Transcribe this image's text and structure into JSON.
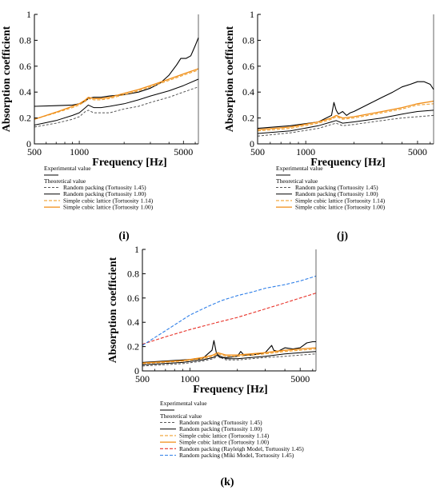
{
  "chart_data": [
    {
      "panel": "(i)",
      "type": "line",
      "xlabel": "Frequency [Hz]",
      "ylabel": "Absorption coefficient",
      "xscale": "log",
      "xlim": [
        500,
        6300
      ],
      "ylim": [
        0,
        1
      ],
      "xticks": [
        {
          "v": 500,
          "t": "500"
        },
        {
          "v": 1000,
          "t": "1000"
        },
        {
          "v": 5000,
          "t": "5000"
        }
      ],
      "yticks": [
        {
          "v": 0,
          "t": "0"
        },
        {
          "v": 0.2,
          "t": "0.2"
        },
        {
          "v": 0.4,
          "t": "0.4"
        },
        {
          "v": 0.6,
          "t": "0.6"
        },
        {
          "v": 0.8,
          "t": "0.8"
        },
        {
          "v": 1,
          "t": "1"
        }
      ],
      "legend": {
        "experimental_header": "Experimental value",
        "theoretical_header": "Theoretical value",
        "entries": [
          "Random packing (Tortuosity 1.45)",
          "Random packing (Tortuosity 1.00)",
          "Simple cubic lattice (Tortuosity 1.14)",
          "Simple cubic lattice (Tortuosity 1.00)"
        ]
      },
      "series": [
        {
          "color": "#000000",
          "dash": "solid",
          "width": 1.1,
          "x": [
            500,
            700,
            900,
            1000,
            1100,
            1150,
            1250,
            1400,
            1600,
            2000,
            2500,
            3000,
            3500,
            4000,
            4500,
            4800,
            5200,
            5600,
            6000,
            6300
          ],
          "y": [
            0.29,
            0.295,
            0.3,
            0.31,
            0.33,
            0.35,
            0.36,
            0.36,
            0.37,
            0.38,
            0.4,
            0.43,
            0.47,
            0.53,
            0.61,
            0.66,
            0.66,
            0.68,
            0.76,
            0.82
          ]
        },
        {
          "color": "#555555",
          "dash": "3,2",
          "width": 1,
          "x": [
            500,
            700,
            900,
            1000,
            1100,
            1150,
            1250,
            1400,
            1600,
            2000,
            2500,
            3000,
            4000,
            5000,
            6300
          ],
          "y": [
            0.13,
            0.16,
            0.19,
            0.21,
            0.25,
            0.26,
            0.24,
            0.24,
            0.24,
            0.27,
            0.29,
            0.32,
            0.36,
            0.4,
            0.44
          ]
        },
        {
          "color": "#000000",
          "dash": "solid",
          "width": 1,
          "x": [
            500,
            700,
            900,
            1000,
            1100,
            1150,
            1250,
            1400,
            1600,
            2000,
            2500,
            3000,
            4000,
            5000,
            6300
          ],
          "y": [
            0.145,
            0.18,
            0.22,
            0.24,
            0.28,
            0.3,
            0.28,
            0.28,
            0.29,
            0.31,
            0.34,
            0.37,
            0.41,
            0.45,
            0.5
          ]
        },
        {
          "color": "#f0a030",
          "dash": "4,2",
          "width": 1.1,
          "x": [
            500,
            700,
            900,
            1000,
            1100,
            1150,
            1250,
            1400,
            1600,
            2000,
            2500,
            3000,
            4000,
            5000,
            6300
          ],
          "y": [
            0.19,
            0.24,
            0.28,
            0.3,
            0.33,
            0.35,
            0.34,
            0.34,
            0.35,
            0.38,
            0.41,
            0.44,
            0.49,
            0.53,
            0.57
          ]
        },
        {
          "color": "#f08c14",
          "dash": "solid",
          "width": 1.3,
          "x": [
            500,
            700,
            900,
            1000,
            1100,
            1150,
            1250,
            1400,
            1600,
            2000,
            2500,
            3000,
            4000,
            5000,
            6300
          ],
          "y": [
            0.19,
            0.245,
            0.29,
            0.31,
            0.34,
            0.36,
            0.35,
            0.35,
            0.36,
            0.39,
            0.42,
            0.45,
            0.5,
            0.54,
            0.58
          ]
        }
      ]
    },
    {
      "panel": "(j)",
      "type": "line",
      "xlabel": "Frequency [Hz]",
      "ylabel": "Absorption coefficient",
      "xscale": "log",
      "xlim": [
        500,
        6300
      ],
      "ylim": [
        0,
        1
      ],
      "xticks": [
        {
          "v": 500,
          "t": "500"
        },
        {
          "v": 1000,
          "t": "1000"
        },
        {
          "v": 5000,
          "t": "5000"
        }
      ],
      "yticks": [
        {
          "v": 0,
          "t": "0"
        },
        {
          "v": 0.2,
          "t": "0.2"
        },
        {
          "v": 0.4,
          "t": "0.4"
        },
        {
          "v": 0.6,
          "t": "0.6"
        },
        {
          "v": 0.8,
          "t": "0.8"
        },
        {
          "v": 1,
          "t": "1"
        }
      ],
      "legend": {
        "experimental_header": "Experimental value",
        "theoretical_header": "Theoretical value",
        "entries": [
          "Random packing (Tortuosity 1.45)",
          "Random packing (Tortuosity 1.00)",
          "Simple cubic lattice (Tortuosity 1.14)",
          "Simple cubic lattice (Tortuosity 1.00)"
        ]
      },
      "series": [
        {
          "color": "#000000",
          "dash": "solid",
          "width": 1.1,
          "x": [
            500,
            800,
            1200,
            1450,
            1500,
            1550,
            1600,
            1700,
            1800,
            1900,
            2000,
            2500,
            3000,
            3500,
            4000,
            4500,
            5000,
            5500,
            6000,
            6300
          ],
          "y": [
            0.12,
            0.14,
            0.17,
            0.22,
            0.32,
            0.26,
            0.23,
            0.25,
            0.22,
            0.24,
            0.25,
            0.31,
            0.36,
            0.4,
            0.44,
            0.46,
            0.48,
            0.48,
            0.46,
            0.42
          ]
        },
        {
          "color": "#555555",
          "dash": "3,2",
          "width": 1,
          "x": [
            500,
            800,
            1200,
            1450,
            1550,
            1700,
            2000,
            3000,
            4000,
            5000,
            6300
          ],
          "y": [
            0.06,
            0.085,
            0.12,
            0.15,
            0.16,
            0.14,
            0.15,
            0.18,
            0.2,
            0.21,
            0.22
          ]
        },
        {
          "color": "#000000",
          "dash": "solid",
          "width": 1,
          "x": [
            500,
            800,
            1200,
            1450,
            1550,
            1700,
            2000,
            3000,
            4000,
            5000,
            6300
          ],
          "y": [
            0.08,
            0.1,
            0.14,
            0.17,
            0.18,
            0.16,
            0.17,
            0.2,
            0.23,
            0.25,
            0.26
          ]
        },
        {
          "color": "#f0a030",
          "dash": "4,2",
          "width": 1.1,
          "x": [
            500,
            800,
            1200,
            1450,
            1550,
            1700,
            2000,
            3000,
            4000,
            5000,
            6300
          ],
          "y": [
            0.1,
            0.12,
            0.16,
            0.19,
            0.21,
            0.19,
            0.2,
            0.24,
            0.27,
            0.3,
            0.31
          ]
        },
        {
          "color": "#f08c14",
          "dash": "solid",
          "width": 1.3,
          "x": [
            500,
            800,
            1200,
            1450,
            1550,
            1700,
            2000,
            3000,
            4000,
            5000,
            6300
          ],
          "y": [
            0.11,
            0.13,
            0.17,
            0.2,
            0.22,
            0.2,
            0.21,
            0.25,
            0.28,
            0.31,
            0.33
          ]
        }
      ]
    },
    {
      "panel": "(k)",
      "type": "line",
      "xlabel": "Frequency [Hz]",
      "ylabel": "Absorption coefficient",
      "xscale": "log",
      "xlim": [
        500,
        6300
      ],
      "ylim": [
        0,
        1
      ],
      "xticks": [
        {
          "v": 500,
          "t": "500"
        },
        {
          "v": 1000,
          "t": "1000"
        },
        {
          "v": 5000,
          "t": "5000"
        }
      ],
      "yticks": [
        {
          "v": 0,
          "t": "0"
        },
        {
          "v": 0.2,
          "t": "0.2"
        },
        {
          "v": 0.4,
          "t": "0.4"
        },
        {
          "v": 0.6,
          "t": "0.6"
        },
        {
          "v": 0.8,
          "t": "0.8"
        },
        {
          "v": 1,
          "t": "1"
        }
      ],
      "legend": {
        "experimental_header": "Experimental value",
        "theoretical_header": "Theoretical value",
        "entries": [
          "Random packing (Tortuosity 1.45)",
          "Random packing (Tortuosity 1.00)",
          "Simple cubic lattice (Tortuosity 1.14)",
          "Simple cubic lattice (Tortuosity 1.00)",
          "Random packing (Rayleigh Model, Tortuosity 1.45)",
          "Random packing (Miki Model, Tortuosity 1.45)"
        ]
      },
      "series": [
        {
          "color": "#000000",
          "dash": "solid",
          "width": 1.1,
          "x": [
            500,
            900,
            1200,
            1300,
            1380,
            1420,
            1470,
            1550,
            1700,
            2000,
            2100,
            2200,
            2500,
            3000,
            3300,
            3400,
            3600,
            4000,
            4500,
            5000,
            5500,
            6000,
            6300
          ],
          "y": [
            0.07,
            0.09,
            0.1,
            0.14,
            0.17,
            0.25,
            0.15,
            0.11,
            0.11,
            0.12,
            0.16,
            0.13,
            0.13,
            0.15,
            0.21,
            0.17,
            0.16,
            0.19,
            0.18,
            0.19,
            0.23,
            0.24,
            0.24
          ]
        },
        {
          "color": "#555555",
          "dash": "3,2",
          "width": 1,
          "x": [
            500,
            900,
            1200,
            1400,
            1500,
            1700,
            2000,
            3000,
            4000,
            5000,
            6300
          ],
          "y": [
            0.04,
            0.06,
            0.08,
            0.1,
            0.12,
            0.09,
            0.09,
            0.11,
            0.12,
            0.13,
            0.14
          ]
        },
        {
          "color": "#000000",
          "dash": "solid",
          "width": 1,
          "x": [
            500,
            900,
            1200,
            1400,
            1500,
            1700,
            2000,
            3000,
            4000,
            5000,
            6300
          ],
          "y": [
            0.05,
            0.07,
            0.09,
            0.11,
            0.13,
            0.1,
            0.1,
            0.12,
            0.14,
            0.15,
            0.16
          ]
        },
        {
          "color": "#f0a030",
          "dash": "4,2",
          "width": 1.1,
          "x": [
            500,
            900,
            1200,
            1400,
            1500,
            1700,
            2000,
            3000,
            4000,
            5000,
            6300
          ],
          "y": [
            0.06,
            0.08,
            0.1,
            0.12,
            0.14,
            0.12,
            0.12,
            0.14,
            0.16,
            0.17,
            0.18
          ]
        },
        {
          "color": "#f08c14",
          "dash": "solid",
          "width": 1.3,
          "x": [
            500,
            900,
            1200,
            1400,
            1500,
            1700,
            2000,
            3000,
            4000,
            5000,
            6300
          ],
          "y": [
            0.065,
            0.085,
            0.11,
            0.13,
            0.15,
            0.13,
            0.13,
            0.15,
            0.17,
            0.18,
            0.19
          ]
        },
        {
          "color": "#e8332a",
          "dash": "4,2",
          "width": 1.1,
          "x": [
            500,
            700,
            1000,
            1500,
            2000,
            3000,
            4000,
            5000,
            6300
          ],
          "y": [
            0.22,
            0.28,
            0.34,
            0.4,
            0.44,
            0.51,
            0.56,
            0.6,
            0.64
          ]
        },
        {
          "color": "#2f7fe8",
          "dash": "4,2",
          "width": 1.1,
          "x": [
            500,
            700,
            1000,
            1300,
            1600,
            2000,
            2500,
            3000,
            4000,
            5000,
            6300
          ],
          "y": [
            0.21,
            0.33,
            0.46,
            0.53,
            0.58,
            0.62,
            0.65,
            0.68,
            0.71,
            0.74,
            0.78
          ]
        }
      ]
    }
  ]
}
